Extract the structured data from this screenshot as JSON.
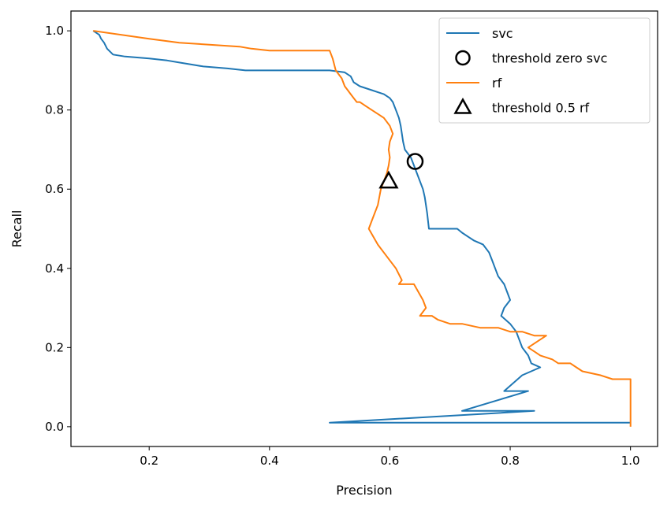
{
  "chart_data": {
    "type": "line",
    "xlabel": "Precision",
    "ylabel": "Recall",
    "xlim": [
      0.07,
      1.045
    ],
    "ylim": [
      -0.05,
      1.05
    ],
    "xticks": [
      0.2,
      0.4,
      0.6,
      0.8,
      1.0
    ],
    "yticks": [
      0.0,
      0.2,
      0.4,
      0.6,
      0.8,
      1.0
    ],
    "xtick_labels": [
      "0.2",
      "0.4",
      "0.6",
      "0.8",
      "1.0"
    ],
    "ytick_labels": [
      "0.0",
      "0.2",
      "0.4",
      "0.6",
      "0.8",
      "1.0"
    ],
    "grid": false,
    "legend_position": "top-right",
    "series": [
      {
        "name": "svc",
        "color": "#1f77b4",
        "x": [
          0.107,
          0.117,
          0.12,
          0.125,
          0.13,
          0.14,
          0.16,
          0.2,
          0.23,
          0.25,
          0.27,
          0.29,
          0.33,
          0.36,
          0.38,
          0.4,
          0.43,
          0.45,
          0.46,
          0.5,
          0.525,
          0.535,
          0.54,
          0.55,
          0.56,
          0.57,
          0.58,
          0.59,
          0.6,
          0.605,
          0.61,
          0.615,
          0.618,
          0.62,
          0.622,
          0.625,
          0.63,
          0.635,
          0.64,
          0.645,
          0.65,
          0.655,
          0.658,
          0.66,
          0.662,
          0.665,
          0.7,
          0.712,
          0.72,
          0.73,
          0.74,
          0.755,
          0.765,
          0.77,
          0.775,
          0.78,
          0.79,
          0.795,
          0.8,
          0.79,
          0.785,
          0.8,
          0.81,
          0.82,
          0.83,
          0.835,
          0.85,
          0.82,
          0.79,
          0.83,
          0.72,
          0.84,
          0.5,
          1.0
        ],
        "y": [
          1.0,
          0.99,
          0.98,
          0.97,
          0.955,
          0.94,
          0.935,
          0.93,
          0.925,
          0.92,
          0.915,
          0.91,
          0.905,
          0.9,
          0.9,
          0.9,
          0.9,
          0.9,
          0.9,
          0.9,
          0.895,
          0.885,
          0.87,
          0.86,
          0.855,
          0.85,
          0.845,
          0.84,
          0.83,
          0.82,
          0.8,
          0.78,
          0.76,
          0.74,
          0.72,
          0.7,
          0.69,
          0.68,
          0.66,
          0.64,
          0.62,
          0.6,
          0.58,
          0.56,
          0.54,
          0.5,
          0.5,
          0.5,
          0.49,
          0.48,
          0.47,
          0.46,
          0.44,
          0.42,
          0.4,
          0.38,
          0.36,
          0.34,
          0.32,
          0.3,
          0.28,
          0.26,
          0.24,
          0.2,
          0.18,
          0.16,
          0.15,
          0.13,
          0.09,
          0.09,
          0.04,
          0.04,
          0.01,
          0.01
        ]
      },
      {
        "name": "rf",
        "color": "#ff7f0e",
        "x": [
          0.107,
          0.2,
          0.25,
          0.3,
          0.35,
          0.37,
          0.4,
          0.42,
          0.45,
          0.5,
          0.505,
          0.51,
          0.52,
          0.525,
          0.53,
          0.535,
          0.54,
          0.545,
          0.55,
          0.56,
          0.57,
          0.58,
          0.59,
          0.6,
          0.605,
          0.6,
          0.598,
          0.6,
          0.598,
          0.595,
          0.59,
          0.585,
          0.58,
          0.57,
          0.565,
          0.58,
          0.59,
          0.6,
          0.61,
          0.62,
          0.615,
          0.63,
          0.64,
          0.655,
          0.66,
          0.65,
          0.67,
          0.68,
          0.7,
          0.72,
          0.75,
          0.78,
          0.8,
          0.82,
          0.84,
          0.86,
          0.83,
          0.84,
          0.85,
          0.87,
          0.88,
          0.9,
          0.91,
          0.92,
          0.95,
          0.97,
          1.0,
          1.0
        ],
        "y": [
          1.0,
          0.98,
          0.97,
          0.965,
          0.96,
          0.955,
          0.95,
          0.95,
          0.95,
          0.95,
          0.93,
          0.9,
          0.88,
          0.86,
          0.85,
          0.84,
          0.83,
          0.82,
          0.82,
          0.81,
          0.8,
          0.79,
          0.78,
          0.76,
          0.74,
          0.72,
          0.7,
          0.68,
          0.66,
          0.64,
          0.62,
          0.6,
          0.56,
          0.52,
          0.5,
          0.46,
          0.44,
          0.42,
          0.4,
          0.37,
          0.36,
          0.36,
          0.36,
          0.32,
          0.3,
          0.28,
          0.28,
          0.27,
          0.26,
          0.26,
          0.25,
          0.25,
          0.24,
          0.24,
          0.23,
          0.23,
          0.2,
          0.19,
          0.18,
          0.17,
          0.16,
          0.16,
          0.15,
          0.14,
          0.13,
          0.12,
          0.12,
          0.0
        ]
      }
    ],
    "markers": [
      {
        "name": "threshold zero svc",
        "shape": "circle",
        "x": 0.642,
        "y": 0.67
      },
      {
        "name": "threshold 0.5 rf",
        "shape": "triangle",
        "x": 0.598,
        "y": 0.62
      }
    ]
  }
}
